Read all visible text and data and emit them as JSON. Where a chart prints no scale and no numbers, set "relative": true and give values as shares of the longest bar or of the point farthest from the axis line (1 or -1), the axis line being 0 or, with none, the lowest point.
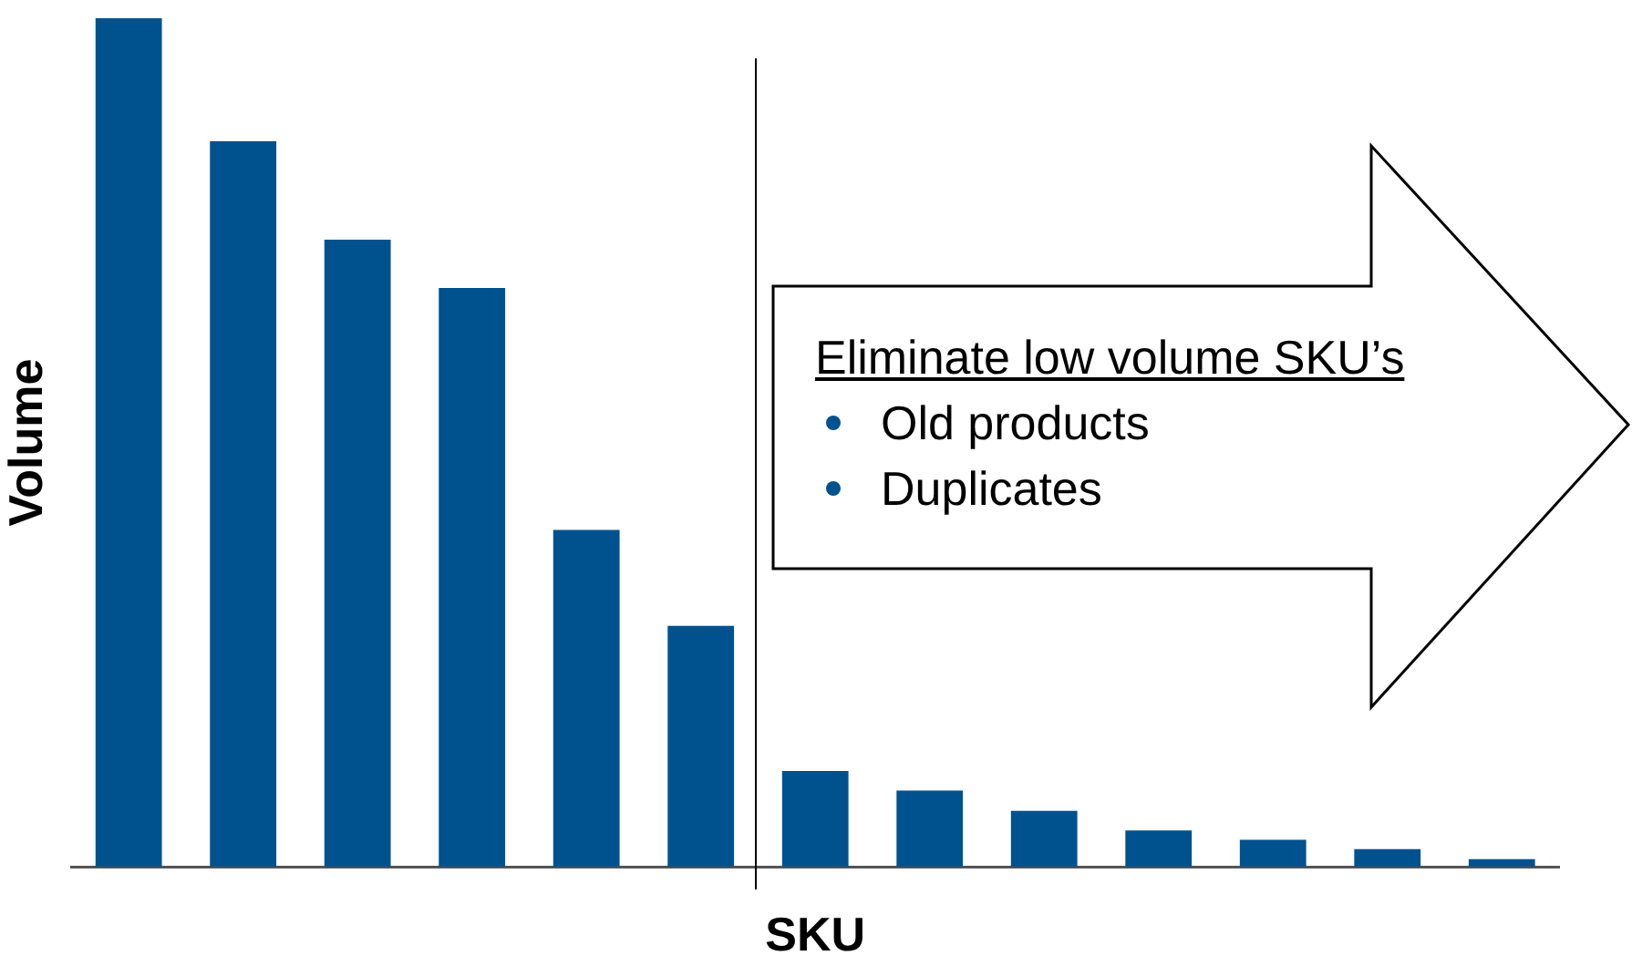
{
  "chart_data": {
    "type": "bar",
    "relative": true,
    "xlabel": "SKU",
    "ylabel": "Volume",
    "color": "#00528f",
    "categories": [
      null,
      null,
      null,
      null,
      null,
      null,
      null,
      null,
      null,
      null,
      null,
      null,
      null
    ],
    "values": [
      1,
      0.855,
      0.739,
      0.682,
      0.397,
      0.284,
      0.113,
      0.09,
      0.066,
      0.043,
      0.032,
      0.021,
      0.009
    ],
    "annotations": [
      "Eliminate low volume SKU’s",
      "Old products",
      "Duplicates"
    ],
    "grid": false,
    "legend": false
  }
}
